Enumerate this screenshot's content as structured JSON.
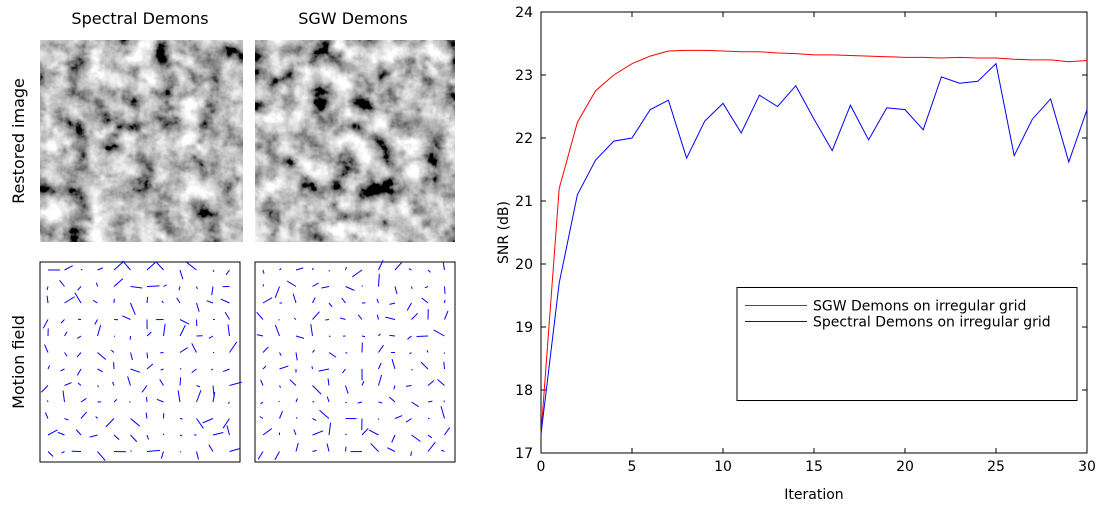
{
  "panels": {
    "columns": [
      "Spectral Demons",
      "SGW Demons"
    ],
    "rows": [
      "Restored image",
      "Motion field"
    ]
  },
  "chart_data": {
    "type": "line",
    "x": [
      0,
      1,
      2,
      3,
      4,
      5,
      6,
      7,
      8,
      9,
      10,
      11,
      12,
      13,
      14,
      15,
      16,
      17,
      18,
      19,
      20,
      21,
      22,
      23,
      24,
      25,
      26,
      27,
      28,
      29,
      30
    ],
    "series": [
      {
        "name": "SGW Demons on irregular grid",
        "color": "#ff0000",
        "values": [
          17.3,
          21.2,
          22.25,
          22.75,
          23.0,
          23.18,
          23.3,
          23.38,
          23.39,
          23.39,
          23.38,
          23.37,
          23.37,
          23.35,
          23.34,
          23.32,
          23.32,
          23.31,
          23.3,
          23.29,
          23.28,
          23.28,
          23.27,
          23.28,
          23.27,
          23.27,
          23.25,
          23.24,
          23.24,
          23.21,
          23.23
        ]
      },
      {
        "name": "Spectral Demons on irregular grid",
        "color": "#0000ff",
        "values": [
          17.3,
          19.7,
          21.1,
          21.65,
          21.95,
          22.0,
          22.45,
          22.6,
          21.68,
          22.27,
          22.55,
          22.08,
          22.68,
          22.5,
          22.83,
          22.3,
          21.8,
          22.52,
          21.97,
          22.48,
          22.45,
          22.13,
          22.97,
          22.87,
          22.9,
          23.18,
          21.72,
          22.3,
          22.62,
          21.62,
          22.45
        ]
      }
    ],
    "x_label": "Iteration",
    "y_label": "SNR (dB)",
    "xlim": [
      0,
      30
    ],
    "xticks": [
      0,
      5,
      10,
      15,
      20,
      25,
      30
    ],
    "ylim": [
      17,
      24
    ],
    "yticks": [
      17,
      18,
      19,
      20,
      21,
      22,
      23,
      24
    ],
    "legend": "center right"
  }
}
